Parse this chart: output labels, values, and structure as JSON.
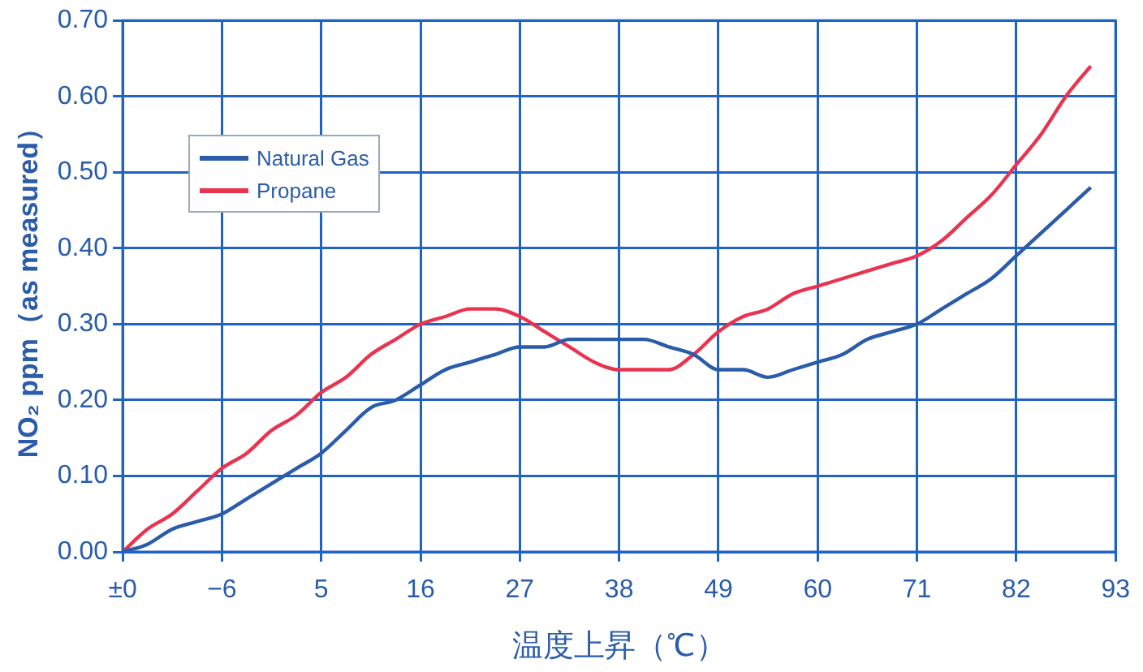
{
  "chart_data": {
    "type": "line",
    "xlabel": "温度上昇（℃）",
    "ylabel": "NO₂ ppm（as measured）",
    "categories": [
      "±0",
      null,
      null,
      null,
      "−6",
      null,
      null,
      null,
      "5",
      null,
      null,
      null,
      "16",
      null,
      null,
      null,
      "27",
      null,
      null,
      null,
      "38",
      null,
      null,
      null,
      "49",
      null,
      null,
      null,
      "60",
      null,
      null,
      null,
      "71",
      null,
      null,
      null,
      "82",
      null,
      null,
      null,
      "93"
    ],
    "ylim": [
      0,
      0.7
    ],
    "yticks": [
      {
        "value": 0,
        "label": "0.00"
      },
      {
        "value": 0.1,
        "label": "0.10"
      },
      {
        "value": 0.2,
        "label": "0.20"
      },
      {
        "value": 0.3,
        "label": "0.30"
      },
      {
        "value": 0.4,
        "label": "0.40"
      },
      {
        "value": 0.5,
        "label": "0.50"
      },
      {
        "value": 0.6,
        "label": "0.60"
      },
      {
        "value": 0.7,
        "label": "0.70"
      }
    ],
    "grid": true,
    "legend": "top left",
    "marker": "none",
    "line_style": "solid",
    "series": [
      {
        "name": "Natural Gas",
        "color": "#2a5caa",
        "values": [
          0,
          0.01,
          0.03,
          0.04,
          0.05,
          0.07,
          0.09,
          0.11,
          0.13,
          0.16,
          0.19,
          0.2,
          0.22,
          0.24,
          0.25,
          0.26,
          0.27,
          0.27,
          0.28,
          0.28,
          0.28,
          0.28,
          0.27,
          0.26,
          0.24,
          0.24,
          0.23,
          0.24,
          0.25,
          0.26,
          0.28,
          0.29,
          0.3,
          0.32,
          0.34,
          0.36,
          0.39,
          0.42,
          0.45,
          0.48,
          null
        ]
      },
      {
        "name": "Propane",
        "color": "#e8344e",
        "values": [
          0,
          0.03,
          0.05,
          0.08,
          0.11,
          0.13,
          0.16,
          0.18,
          0.21,
          0.23,
          0.26,
          0.28,
          0.3,
          0.31,
          0.32,
          0.32,
          0.31,
          0.29,
          0.27,
          0.25,
          0.24,
          0.24,
          0.24,
          0.26,
          0.29,
          0.31,
          0.32,
          0.34,
          0.35,
          0.36,
          0.37,
          0.38,
          0.39,
          0.41,
          0.44,
          0.47,
          0.51,
          0.55,
          0.6,
          0.64,
          null
        ]
      }
    ]
  }
}
